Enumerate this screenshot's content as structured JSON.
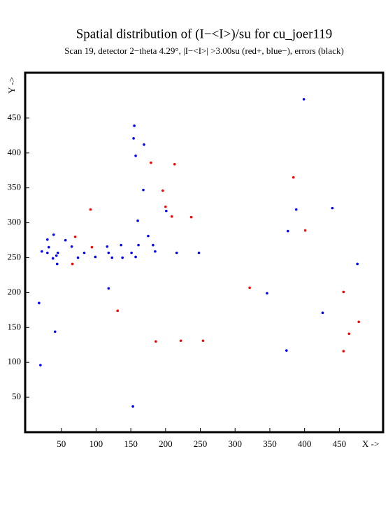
{
  "chart_data": {
    "type": "scatter",
    "title": "Spatial distribution of (I−<I>)/su for cu_joer119",
    "subtitle": "Scan 19, detector 2−theta   4.29°, |I−<I>| >3.00su (red+, blue−), errors (black)",
    "x_label": "X ->",
    "y_label": "Y ->",
    "xlim": [
      -2,
      513
    ],
    "ylim": [
      0,
      515
    ],
    "xticks": [
      50,
      100,
      150,
      200,
      250,
      300,
      350,
      400,
      450
    ],
    "yticks": [
      50,
      100,
      150,
      200,
      250,
      300,
      350,
      400,
      450
    ],
    "series": [
      {
        "color": "#0000ff",
        "x": [
          18,
          20,
          22,
          30,
          32,
          30,
          39,
          38,
          43,
          45,
          44,
          41,
          56,
          65,
          74,
          83,
          99,
          116,
          118,
          118,
          123,
          136,
          138,
          151,
          155,
          154,
          157,
          157,
          160,
          161,
          168,
          169,
          175,
          182,
          185,
          153,
          201,
          216,
          248,
          346,
          374,
          376,
          388,
          399,
          426,
          440,
          476
        ],
        "values": [
          185,
          96,
          259,
          276,
          265,
          257,
          283,
          249,
          253,
          257,
          241,
          144,
          275,
          266,
          250,
          257,
          251,
          266,
          257,
          206,
          250,
          268,
          250,
          257,
          439,
          421,
          396,
          251,
          303,
          268,
          347,
          412,
          281,
          268,
          259,
          37,
          317,
          257,
          257,
          199,
          117,
          288,
          319,
          477,
          171,
          321,
          241
        ]
      },
      {
        "color": "#ff0000",
        "x": [
          92,
          70,
          66,
          94,
          131,
          179,
          196,
          200,
          209,
          213,
          237,
          186,
          222,
          254,
          321,
          384,
          401,
          456,
          456,
          464,
          478
        ],
        "values": [
          319,
          280,
          241,
          265,
          174,
          386,
          346,
          323,
          309,
          384,
          308,
          130,
          131,
          131,
          207,
          365,
          289,
          201,
          116,
          141,
          158
        ]
      }
    ]
  }
}
